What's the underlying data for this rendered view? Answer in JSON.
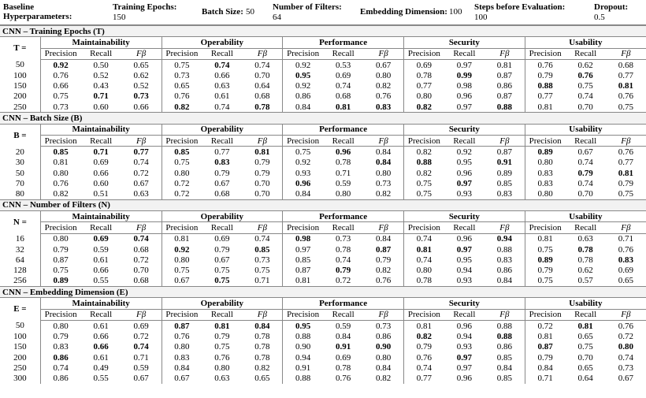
{
  "header": {
    "title": "Baseline Hyperparameters:",
    "params": [
      {
        "label": "Training Epochs:",
        "value": "150"
      },
      {
        "label": "Batch Size:",
        "value": "50"
      },
      {
        "label": "Number of Filters:",
        "value": "64"
      },
      {
        "label": "Embedding Dimension:",
        "value": "100"
      },
      {
        "label": "Steps before Evaluation:",
        "value": "100"
      },
      {
        "label": "Dropout:",
        "value": "0.5"
      }
    ]
  },
  "groups": [
    "Maintainability",
    "Operability",
    "Performance",
    "Security",
    "Usability"
  ],
  "metrics": [
    "Precision",
    "Recall",
    "Fβ"
  ],
  "sections": [
    {
      "title": "CNN – Training Epochs (T)",
      "label": "T =",
      "rows": [
        {
          "label": "50",
          "cells": [
            "0.92",
            "0.50",
            "0.65",
            "0.75",
            "0.74",
            "0.74",
            "0.92",
            "0.53",
            "0.67",
            "0.69",
            "0.97",
            "0.81",
            "0.76",
            "0.62",
            "0.68"
          ],
          "bold": [
            0,
            4
          ]
        },
        {
          "label": "100",
          "cells": [
            "0.76",
            "0.52",
            "0.62",
            "0.73",
            "0.66",
            "0.70",
            "0.95",
            "0.69",
            "0.80",
            "0.78",
            "0.99",
            "0.87",
            "0.79",
            "0.76",
            "0.77"
          ],
          "bold": [
            6,
            10,
            13
          ]
        },
        {
          "label": "150",
          "cells": [
            "0.66",
            "0.43",
            "0.52",
            "0.65",
            "0.63",
            "0.64",
            "0.92",
            "0.74",
            "0.82",
            "0.77",
            "0.98",
            "0.86",
            "0.88",
            "0.75",
            "0.81"
          ],
          "bold": [
            12,
            14
          ]
        },
        {
          "label": "200",
          "cells": [
            "0.75",
            "0.71",
            "0.73",
            "0.76",
            "0.61",
            "0.68",
            "0.86",
            "0.68",
            "0.76",
            "0.80",
            "0.96",
            "0.87",
            "0.77",
            "0.74",
            "0.76"
          ],
          "bold": [
            1,
            2
          ]
        },
        {
          "label": "250",
          "cells": [
            "0.73",
            "0.60",
            "0.66",
            "0.82",
            "0.74",
            "0.78",
            "0.84",
            "0.81",
            "0.83",
            "0.82",
            "0.97",
            "0.88",
            "0.81",
            "0.70",
            "0.75"
          ],
          "bold": [
            3,
            5,
            7,
            8,
            9,
            11
          ]
        }
      ]
    },
    {
      "title": "CNN – Batch Size (B)",
      "label": "B =",
      "rows": [
        {
          "label": "20",
          "cells": [
            "0.85",
            "0.71",
            "0.77",
            "0.85",
            "0.77",
            "0.81",
            "0.75",
            "0.96",
            "0.84",
            "0.82",
            "0.92",
            "0.87",
            "0.89",
            "0.67",
            "0.76"
          ],
          "bold": [
            0,
            1,
            2,
            3,
            5,
            7,
            12
          ]
        },
        {
          "label": "30",
          "cells": [
            "0.81",
            "0.69",
            "0.74",
            "0.75",
            "0.83",
            "0.79",
            "0.92",
            "0.78",
            "0.84",
            "0.88",
            "0.95",
            "0.91",
            "0.80",
            "0.74",
            "0.77"
          ],
          "bold": [
            4,
            8,
            9,
            11
          ]
        },
        {
          "label": "50",
          "cells": [
            "0.80",
            "0.66",
            "0.72",
            "0.80",
            "0.79",
            "0.79",
            "0.93",
            "0.71",
            "0.80",
            "0.82",
            "0.96",
            "0.89",
            "0.83",
            "0.79",
            "0.81"
          ],
          "bold": [
            13,
            14
          ]
        },
        {
          "label": "70",
          "cells": [
            "0.76",
            "0.60",
            "0.67",
            "0.72",
            "0.67",
            "0.70",
            "0.96",
            "0.59",
            "0.73",
            "0.75",
            "0.97",
            "0.85",
            "0.83",
            "0.74",
            "0.79"
          ],
          "bold": [
            6,
            10
          ]
        },
        {
          "label": "80",
          "cells": [
            "0.82",
            "0.51",
            "0.63",
            "0.72",
            "0.68",
            "0.70",
            "0.84",
            "0.80",
            "0.82",
            "0.75",
            "0.93",
            "0.83",
            "0.80",
            "0.70",
            "0.75"
          ],
          "bold": []
        }
      ]
    },
    {
      "title": "CNN – Number of Filters (N)",
      "label": "N =",
      "rows": [
        {
          "label": "16",
          "cells": [
            "0.80",
            "0.69",
            "0.74",
            "0.81",
            "0.69",
            "0.74",
            "0.98",
            "0.73",
            "0.84",
            "0.74",
            "0.96",
            "0.94",
            "0.81",
            "0.63",
            "0.71"
          ],
          "bold": [
            1,
            2,
            6,
            11
          ]
        },
        {
          "label": "32",
          "cells": [
            "0.79",
            "0.59",
            "0.68",
            "0.92",
            "0.79",
            "0.85",
            "0.97",
            "0.78",
            "0.87",
            "0.81",
            "0.97",
            "0.88",
            "0.75",
            "0.78",
            "0.76"
          ],
          "bold": [
            3,
            5,
            8,
            9,
            10,
            13
          ]
        },
        {
          "label": "64",
          "cells": [
            "0.87",
            "0.61",
            "0.72",
            "0.80",
            "0.67",
            "0.73",
            "0.85",
            "0.74",
            "0.79",
            "0.74",
            "0.95",
            "0.83",
            "0.89",
            "0.78",
            "0.83"
          ],
          "bold": [
            12,
            14
          ]
        },
        {
          "label": "128",
          "cells": [
            "0.75",
            "0.66",
            "0.70",
            "0.75",
            "0.75",
            "0.75",
            "0.87",
            "0.79",
            "0.82",
            "0.80",
            "0.94",
            "0.86",
            "0.79",
            "0.62",
            "0.69"
          ],
          "bold": [
            7
          ]
        },
        {
          "label": "256",
          "cells": [
            "0.89",
            "0.55",
            "0.68",
            "0.67",
            "0.75",
            "0.71",
            "0.81",
            "0.72",
            "0.76",
            "0.78",
            "0.93",
            "0.84",
            "0.75",
            "0.57",
            "0.65"
          ],
          "bold": [
            0,
            4
          ]
        }
      ]
    },
    {
      "title": "CNN – Embedding Dimension (E)",
      "label": "E =",
      "rows": [
        {
          "label": "50",
          "cells": [
            "0.80",
            "0.61",
            "0.69",
            "0.87",
            "0.81",
            "0.84",
            "0.95",
            "0.59",
            "0.73",
            "0.81",
            "0.96",
            "0.88",
            "0.72",
            "0.81",
            "0.76"
          ],
          "bold": [
            3,
            4,
            5,
            6,
            13
          ]
        },
        {
          "label": "100",
          "cells": [
            "0.79",
            "0.66",
            "0.72",
            "0.76",
            "0.79",
            "0.78",
            "0.88",
            "0.84",
            "0.86",
            "0.82",
            "0.94",
            "0.88",
            "0.81",
            "0.65",
            "0.72"
          ],
          "bold": [
            9,
            11
          ]
        },
        {
          "label": "150",
          "cells": [
            "0.83",
            "0.66",
            "0.74",
            "0.80",
            "0.75",
            "0.78",
            "0.90",
            "0.91",
            "0.90",
            "0.79",
            "0.93",
            "0.86",
            "0.87",
            "0.75",
            "0.80"
          ],
          "bold": [
            1,
            2,
            7,
            8,
            12,
            14
          ]
        },
        {
          "label": "200",
          "cells": [
            "0.86",
            "0.61",
            "0.71",
            "0.83",
            "0.76",
            "0.78",
            "0.94",
            "0.69",
            "0.80",
            "0.76",
            "0.97",
            "0.85",
            "0.79",
            "0.70",
            "0.74"
          ],
          "bold": [
            0,
            10
          ]
        },
        {
          "label": "250",
          "cells": [
            "0.74",
            "0.49",
            "0.59",
            "0.84",
            "0.80",
            "0.82",
            "0.91",
            "0.78",
            "0.84",
            "0.74",
            "0.97",
            "0.84",
            "0.84",
            "0.65",
            "0.73"
          ],
          "bold": []
        },
        {
          "label": "300",
          "cells": [
            "0.86",
            "0.55",
            "0.67",
            "0.67",
            "0.63",
            "0.65",
            "0.88",
            "0.76",
            "0.82",
            "0.77",
            "0.96",
            "0.85",
            "0.71",
            "0.64",
            "0.67"
          ],
          "bold": []
        }
      ]
    }
  ]
}
